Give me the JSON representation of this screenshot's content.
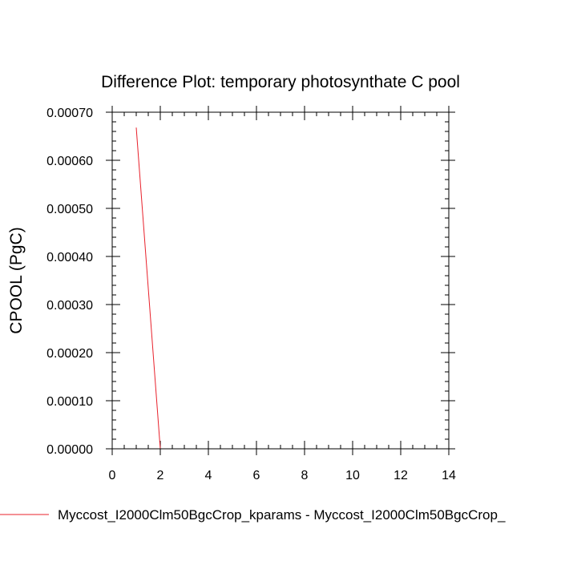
{
  "chart_data": {
    "type": "line",
    "title": "Difference Plot: temporary photosynthate C pool",
    "xlabel": "",
    "ylabel": "CPOOL  (PgC)",
    "xlim": [
      0,
      14
    ],
    "ylim": [
      0,
      0.0007
    ],
    "x_ticks": [
      0,
      2,
      4,
      6,
      8,
      10,
      12,
      14
    ],
    "x_tick_labels": [
      "0",
      "2",
      "4",
      "6",
      "8",
      "10",
      "12",
      "14"
    ],
    "y_ticks": [
      0,
      0.0001,
      0.0002,
      0.0003,
      0.0004,
      0.0005,
      0.0006,
      0.0007
    ],
    "y_tick_labels": [
      "0.00000",
      "0.00010",
      "0.00020",
      "0.00030",
      "0.00040",
      "0.00050",
      "0.00060",
      "0.00070"
    ],
    "grid": false,
    "legend_position": "bottom",
    "series": [
      {
        "name": "Myccost_I2000Clm50BgcCrop_kparams - Myccost_I2000Clm50BgcCrop_",
        "color": "#e8212b",
        "x": [
          1,
          2,
          3,
          4,
          5,
          6,
          7,
          8,
          9,
          10,
          11,
          12,
          13,
          14
        ],
        "y": [
          0.000668,
          0,
          0,
          0,
          0,
          0,
          0,
          0,
          0,
          0,
          0,
          0,
          0,
          0
        ]
      }
    ]
  }
}
